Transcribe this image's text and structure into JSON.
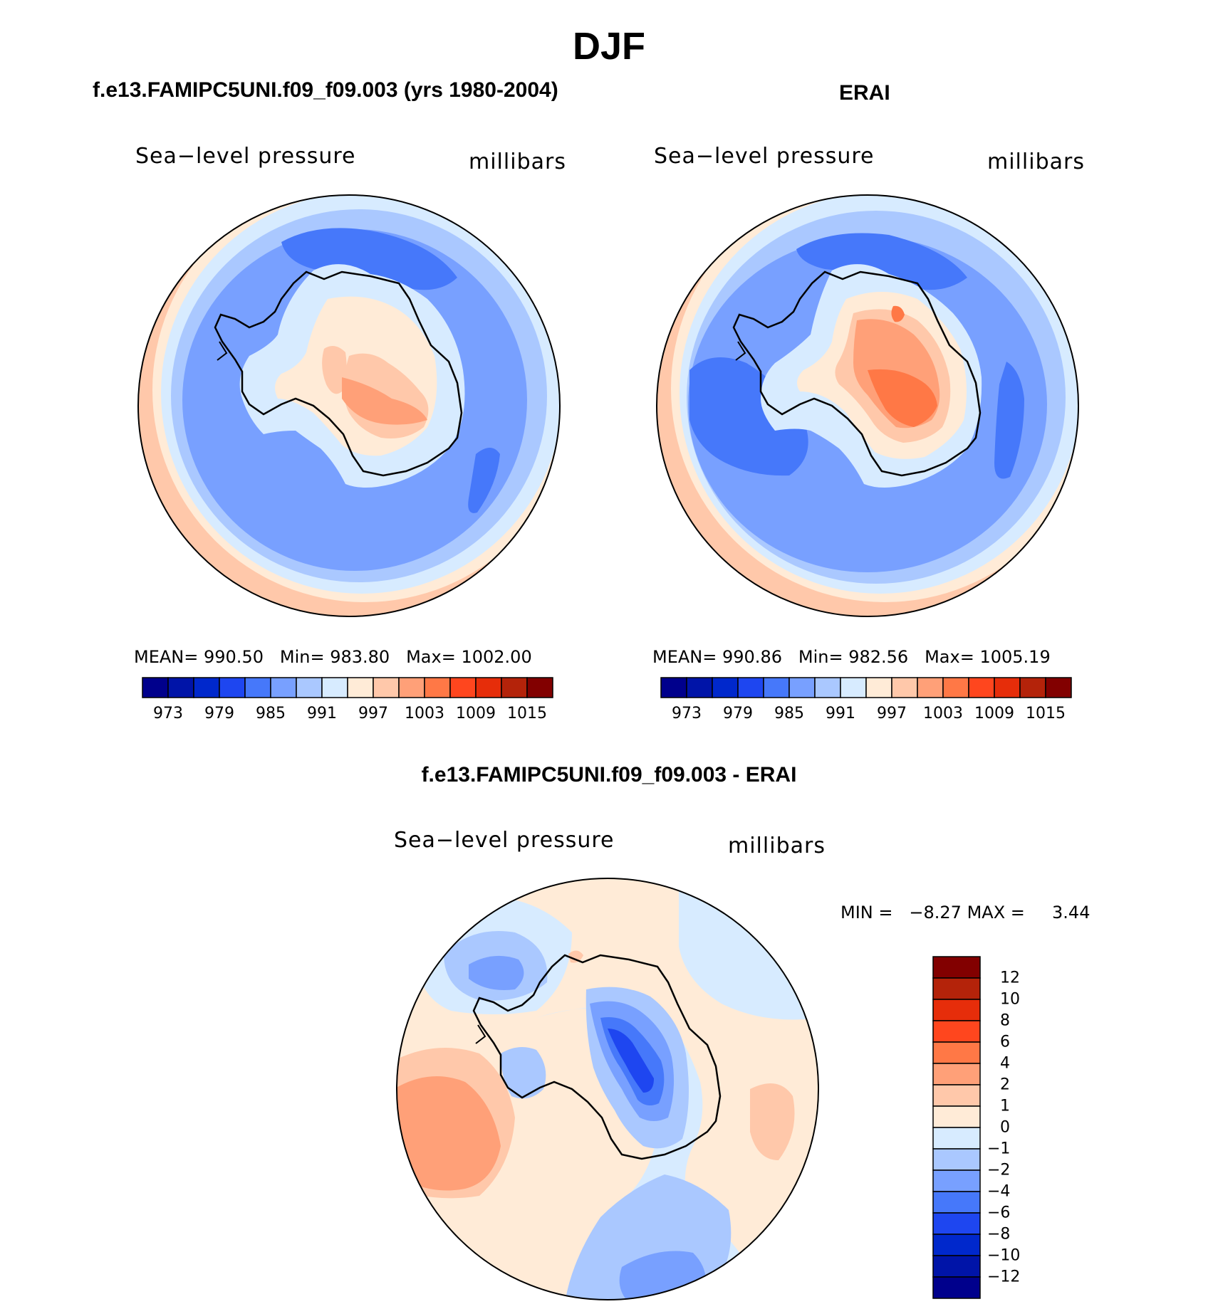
{
  "figure": {
    "main_title": "DJF"
  },
  "panels": [
    {
      "title": "f.e13.FAMIPC5UNI.f09_f09.003 (yrs 1980-2004)",
      "variable": "Sea−level pressure",
      "units": "millibars",
      "stats": {
        "mean_label": "MEAN=",
        "mean": "990.50",
        "min_label": "Min=",
        "min": "983.80",
        "max_label": "Max=",
        "max": "1002.00"
      }
    },
    {
      "title": "ERAI",
      "variable": "Sea−level pressure",
      "units": "millibars",
      "stats": {
        "mean_label": "MEAN=",
        "mean": "990.86",
        "min_label": "Min=",
        "min": "982.56",
        "max_label": "Max=",
        "max": "1005.19"
      }
    },
    {
      "title": "f.e13.FAMIPC5UNI.f09_f09.003 - ERAI",
      "variable": "Sea−level pressure",
      "units": "millibars",
      "stats": {
        "min_label": "MIN =",
        "min": "−8.27",
        "max_label": "MAX =",
        "max": "3.44"
      }
    }
  ],
  "colorbars": {
    "absolute": {
      "colors": [
        "#00008c",
        "#0014a8",
        "#0028cc",
        "#1e46f0",
        "#4678fa",
        "#78a0ff",
        "#aac8ff",
        "#d7ebff",
        "#ffebd7",
        "#ffc8aa",
        "#ffa078",
        "#ff7846",
        "#ff461e",
        "#e62d0a",
        "#b4230a",
        "#820000"
      ],
      "tick_labels": [
        "973",
        "979",
        "985",
        "991",
        "997",
        "1003",
        "1009",
        "1015"
      ]
    },
    "difference": {
      "colors": [
        "#820000",
        "#b4230a",
        "#e62d0a",
        "#ff461e",
        "#ff7846",
        "#ffa078",
        "#ffc8aa",
        "#ffebd7",
        "#d7ebff",
        "#aac8ff",
        "#78a0ff",
        "#4678fa",
        "#1e46f0",
        "#0028cc",
        "#0014a8",
        "#00008c"
      ],
      "tick_labels": [
        "12",
        "10",
        "8",
        "6",
        "4",
        "2",
        "1",
        "0",
        "−1",
        "−2",
        "−4",
        "−6",
        "−8",
        "−10",
        "−12"
      ]
    }
  }
}
